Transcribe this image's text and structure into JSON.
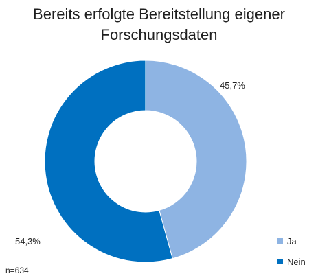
{
  "chart_data": {
    "type": "pie",
    "title_lines": [
      "Bereits erfolgte Bereitstellung eigener",
      "Forschungsdaten"
    ],
    "categories": [
      "Ja",
      "Nein"
    ],
    "values": [
      45.7,
      54.3
    ],
    "value_labels": [
      "45,7%",
      "54,3%"
    ],
    "colors": [
      "#8EB4E3",
      "#0070C0"
    ],
    "donut": true,
    "legend_position": "bottom-right",
    "note": "n=634"
  }
}
